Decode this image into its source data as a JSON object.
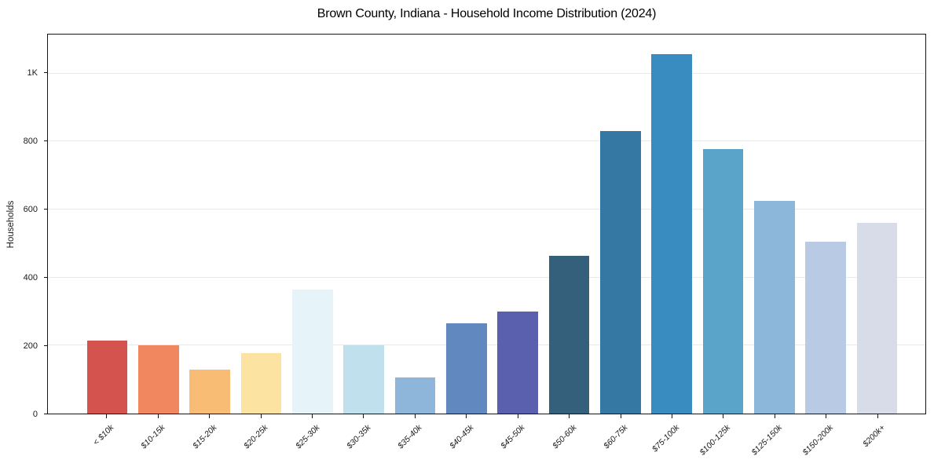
{
  "chart_data": {
    "type": "bar",
    "title": "Brown County, Indiana - Household Income Distribution (2024)",
    "xlabel": "",
    "ylabel": "Households",
    "categories": [
      "< $10k",
      "$10-15k",
      "$15-20k",
      "$20-25k",
      "$25-30k",
      "$30-35k",
      "$35-40k",
      "$40-45k",
      "$45-50k",
      "$50-60k",
      "$60-75k",
      "$75-100k",
      "$100-125k",
      "$125-150k",
      "$150-200k",
      "$200k+"
    ],
    "values": [
      215,
      200,
      130,
      177,
      365,
      202,
      107,
      265,
      299,
      463,
      830,
      1058,
      777,
      625,
      506,
      561
    ],
    "bar_colors": [
      "#d5534f",
      "#f0875f",
      "#f9bc74",
      "#fce3a2",
      "#e6f4f9",
      "#c0e0ee",
      "#8db6da",
      "#6288c0",
      "#5a5fae",
      "#34607b",
      "#3578a3",
      "#388cc0",
      "#5ba4c9",
      "#8cb6da",
      "#b9cbe4",
      "#d8dbe8"
    ],
    "ylim": [
      0,
      1115
    ],
    "yticks": [
      {
        "value": 0,
        "label": "0"
      },
      {
        "value": 200,
        "label": "200"
      },
      {
        "value": 400,
        "label": "400"
      },
      {
        "value": 600,
        "label": "600"
      },
      {
        "value": 800,
        "label": "800"
      },
      {
        "value": 1000,
        "label": "1K"
      }
    ],
    "grid": "horizontal",
    "legend": "none"
  },
  "colors": {
    "grid": "#e9e9ec",
    "spine": "#141414",
    "text": "#1a1a1a",
    "background": "#ffffff"
  }
}
